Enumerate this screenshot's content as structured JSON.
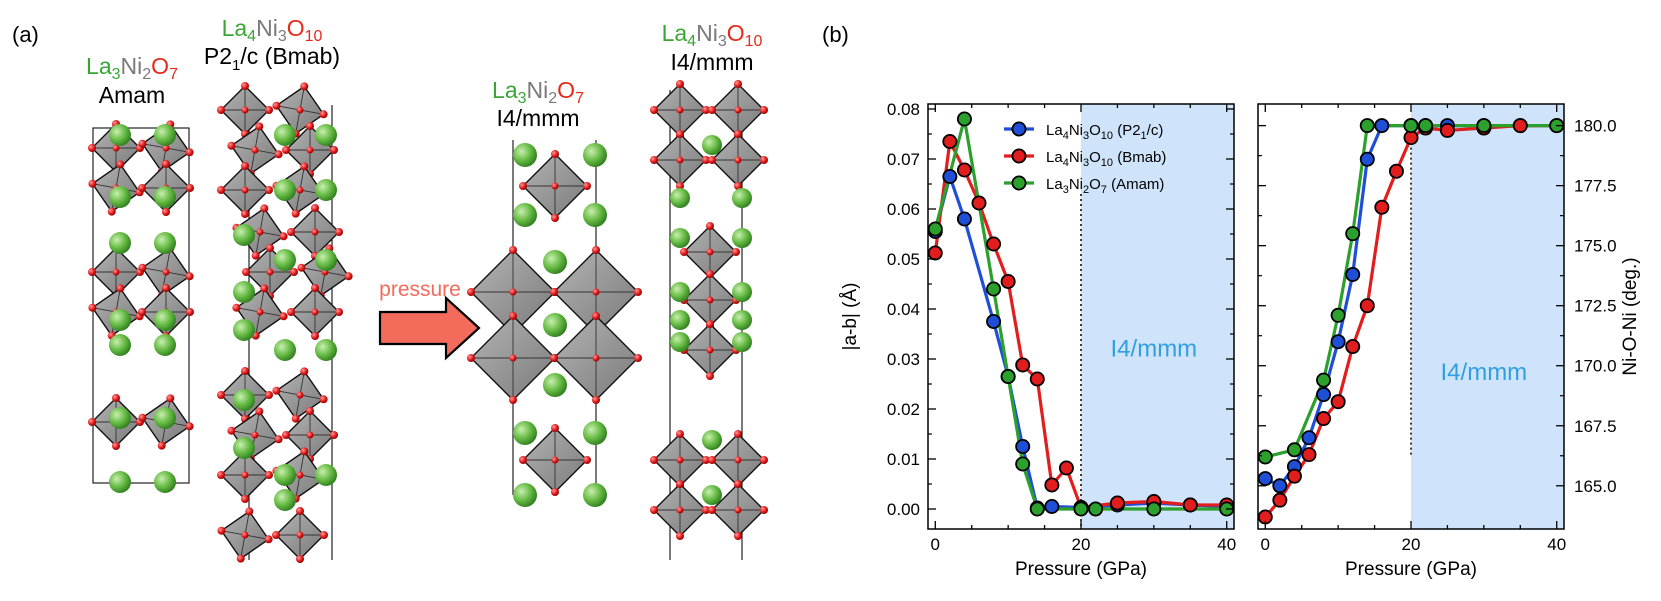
{
  "panel_a": {
    "label": "(a)",
    "arrow_label": "pressure",
    "structures": [
      {
        "formula": [
          {
            "t": "La",
            "c": "green"
          },
          {
            "t": "3",
            "c": "green"
          },
          {
            "t": "Ni",
            "c": "gray"
          },
          {
            "t": "2",
            "c": "gray"
          },
          {
            "t": "O",
            "c": "red"
          },
          {
            "t": "7",
            "c": "red"
          }
        ],
        "space_group": "Amam"
      },
      {
        "formula": [
          {
            "t": "La",
            "c": "green"
          },
          {
            "t": "4",
            "c": "green"
          },
          {
            "t": "Ni",
            "c": "gray"
          },
          {
            "t": "3",
            "c": "gray"
          },
          {
            "t": "O",
            "c": "red"
          },
          {
            "t": "10",
            "c": "red"
          }
        ],
        "space_group_main": "P2",
        "space_group_sub": "1",
        "space_group_rest": "/c (Bmab)"
      },
      {
        "formula": [
          {
            "t": "La",
            "c": "green"
          },
          {
            "t": "3",
            "c": "green"
          },
          {
            "t": "Ni",
            "c": "gray"
          },
          {
            "t": "2",
            "c": "gray"
          },
          {
            "t": "O",
            "c": "red"
          },
          {
            "t": "7",
            "c": "red"
          }
        ],
        "space_group": "I4/mmm"
      },
      {
        "formula": [
          {
            "t": "La",
            "c": "green"
          },
          {
            "t": "4",
            "c": "green"
          },
          {
            "t": "Ni",
            "c": "gray"
          },
          {
            "t": "3",
            "c": "gray"
          },
          {
            "t": "O",
            "c": "red"
          },
          {
            "t": "10",
            "c": "red"
          }
        ],
        "space_group": "I4/mmm"
      }
    ]
  },
  "colors": {
    "green_text": "#3aa535",
    "gray_text": "#7a7a7a",
    "red_text": "#e62a1a",
    "arrow": "#f26b5b",
    "shade": "#cfe4fb",
    "i4mmm_text": "#2f9fe0",
    "blue": "#1f4fd6",
    "red": "#e11d1d",
    "green": "#2ca02c"
  },
  "panel_b": {
    "label": "(b)",
    "region_label": "I4/mmm",
    "legend": [
      {
        "base": "La",
        "s1": "4",
        "m": "Ni",
        "s2": "3",
        "o": "O",
        "s3": "10",
        "suffix_pre": " (P2",
        "suffix_sub": "1",
        "suffix_post": "/c)",
        "series": 0
      },
      {
        "base": "La",
        "s1": "4",
        "m": "Ni",
        "s2": "3",
        "o": "O",
        "s3": "10",
        "suffix_pre": " (Bmab)",
        "suffix_sub": "",
        "suffix_post": "",
        "series": 1
      },
      {
        "base": "La",
        "s1": "3",
        "m": "Ni",
        "s2": "2",
        "o": "O",
        "s3": "7",
        "suffix_pre": " (Amam)",
        "suffix_sub": "",
        "suffix_post": "",
        "series": 2
      }
    ]
  },
  "chart_data": [
    {
      "type": "line",
      "xlabel": "Pressure (GPa)",
      "ylabel": "|a-b| (Å)",
      "xlim": [
        -1,
        41
      ],
      "ylim": [
        -0.004,
        0.081
      ],
      "xticks": [
        0,
        20,
        40
      ],
      "yticks": [
        0.0,
        0.01,
        0.02,
        0.03,
        0.04,
        0.05,
        0.06,
        0.07,
        0.08
      ],
      "ytick_labels": [
        "0.00",
        "0.01",
        "0.02",
        "0.03",
        "0.04",
        "0.05",
        "0.06",
        "0.07",
        "0.08"
      ],
      "shade_from": 20,
      "series": [
        {
          "name": "La4Ni3O10 (P21/c)",
          "color": "blue",
          "x": [
            0,
            2,
            4,
            8,
            10,
            12,
            14,
            16,
            20,
            25,
            30,
            35,
            40
          ],
          "y": [
            0.0555,
            0.0665,
            0.058,
            0.0375,
            0.0265,
            0.0125,
            0.0002,
            0.0005,
            0.0003,
            0.0008,
            0.0012,
            0.0008,
            0.0005
          ]
        },
        {
          "name": "La4Ni3O10 (Bmab)",
          "color": "red",
          "x": [
            0,
            2,
            4,
            6,
            8,
            10,
            12,
            14,
            16,
            18,
            20,
            25,
            30,
            35,
            40
          ],
          "y": [
            0.0512,
            0.0735,
            0.0678,
            0.0612,
            0.053,
            0.0455,
            0.0288,
            0.026,
            0.0048,
            0.0082,
            0.0003,
            0.0012,
            0.0015,
            0.0008,
            0.0008
          ]
        },
        {
          "name": "La3Ni2O7 (Amam)",
          "color": "green",
          "x": [
            0,
            4,
            8,
            10,
            12,
            14,
            20,
            22,
            30,
            40
          ],
          "y": [
            0.056,
            0.078,
            0.044,
            0.0265,
            0.009,
            0.0,
            0.0,
            0.0,
            0.0,
            0.0
          ]
        }
      ]
    },
    {
      "type": "line",
      "xlabel": "Pressure (GPa)",
      "ylabel": "Ni-O-Ni (deg.)",
      "xlim": [
        -1,
        41
      ],
      "ylim": [
        163.2,
        180.9
      ],
      "xticks": [
        0,
        20,
        40
      ],
      "yticks": [
        165.0,
        167.5,
        170.0,
        172.5,
        175.0,
        177.5,
        180.0
      ],
      "ytick_labels": [
        "165.0",
        "167.5",
        "170.0",
        "172.5",
        "175.0",
        "177.5",
        "180.0"
      ],
      "shade_from": 20,
      "series": [
        {
          "name": "La4Ni3O10 (P21/c)",
          "color": "blue",
          "x": [
            0,
            2,
            4,
            6,
            8,
            10,
            12,
            14,
            16,
            20,
            22,
            25,
            30,
            35,
            40
          ],
          "y": [
            165.3,
            165.0,
            165.8,
            167.0,
            168.8,
            171.0,
            173.8,
            178.6,
            180.0,
            180.0,
            180.0,
            180.0,
            180.0,
            180.0,
            180.0
          ]
        },
        {
          "name": "La4Ni3O10 (Bmab)",
          "color": "red",
          "x": [
            0,
            2,
            4,
            6,
            8,
            10,
            12,
            14,
            16,
            18,
            20,
            22,
            25,
            30,
            35,
            40
          ],
          "y": [
            163.7,
            164.4,
            165.4,
            166.3,
            167.8,
            168.5,
            170.8,
            172.5,
            176.6,
            178.1,
            179.5,
            179.9,
            179.8,
            179.9,
            180.0,
            180.0
          ]
        },
        {
          "name": "La3Ni2O7 (Amam)",
          "color": "green",
          "x": [
            0,
            4,
            8,
            10,
            12,
            14,
            20,
            22,
            30,
            40
          ],
          "y": [
            166.2,
            166.5,
            169.4,
            172.1,
            175.5,
            180.0,
            180.0,
            180.0,
            180.0,
            180.0
          ]
        }
      ]
    }
  ]
}
